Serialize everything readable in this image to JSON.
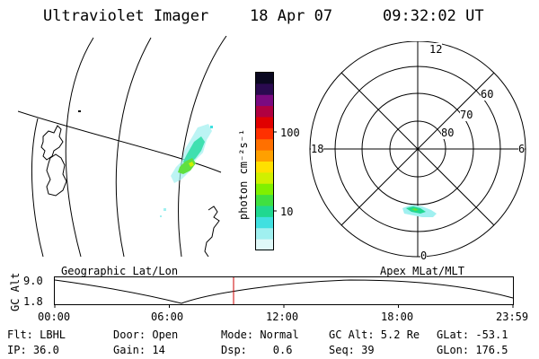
{
  "header": {
    "title": "Ultraviolet Imager",
    "date": "18 Apr 07",
    "time": "09:32:02 UT"
  },
  "colorbar": {
    "label": "photon cm⁻²s⁻¹",
    "ticks": [
      "100",
      "10"
    ],
    "colors": [
      "#0a0820",
      "#2a0a50",
      "#7a0a80",
      "#b00040",
      "#e00000",
      "#ff3000",
      "#ff7000",
      "#ffa000",
      "#ffe000",
      "#d0f000",
      "#80f000",
      "#40e040",
      "#20d890",
      "#40e0e0",
      "#a0f0f0",
      "#e0f8f8"
    ]
  },
  "polar": {
    "labels": {
      "top": "12",
      "left": "18",
      "right": "6",
      "bottom": "0"
    },
    "lat_labels": [
      "60",
      "70",
      "80"
    ]
  },
  "timeline": {
    "left_title": "Geographic Lat/Lon",
    "right_title": "Apex MLat/MLT",
    "y_axis_label": "GC Alt",
    "y_ticks": [
      "9.0",
      "1.8"
    ],
    "x_ticks": [
      "00:00",
      "06:00",
      "12:00",
      "18:00",
      "23:59"
    ],
    "marker_color": "#cc0000"
  },
  "info": {
    "col1": [
      "Flt: LBHL",
      "IP: 36.0"
    ],
    "col2": [
      "Door: Open",
      "Gain: 14"
    ],
    "col3": [
      "Mode: Normal",
      "Dsp:    0.6"
    ],
    "col4": [
      "GC Alt: 5.2 Re",
      "Seq: 39"
    ],
    "col5": [
      "GLat: -53.1",
      "GLon: 176.5"
    ]
  }
}
